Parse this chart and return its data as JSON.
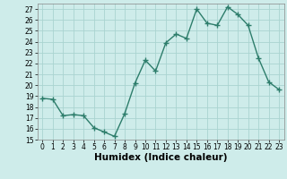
{
  "x": [
    0,
    1,
    2,
    3,
    4,
    5,
    6,
    7,
    8,
    9,
    10,
    11,
    12,
    13,
    14,
    15,
    16,
    17,
    18,
    19,
    20,
    21,
    22,
    23
  ],
  "y": [
    18.8,
    18.7,
    17.2,
    17.3,
    17.2,
    16.1,
    15.7,
    15.3,
    17.4,
    20.2,
    22.3,
    21.3,
    23.9,
    24.7,
    24.3,
    27.0,
    25.7,
    25.5,
    27.2,
    26.5,
    25.5,
    22.5,
    20.3,
    19.6
  ],
  "line_color": "#2d7d6b",
  "marker": "+",
  "marker_size": 4,
  "bg_color": "#ceecea",
  "grid_color": "#aad4d0",
  "xlabel": "Humidex (Indice chaleur)",
  "ylim": [
    15,
    27.5
  ],
  "xlim": [
    -0.5,
    23.5
  ],
  "yticks": [
    15,
    16,
    17,
    18,
    19,
    20,
    21,
    22,
    23,
    24,
    25,
    26,
    27
  ],
  "xticks": [
    0,
    1,
    2,
    3,
    4,
    5,
    6,
    7,
    8,
    9,
    10,
    11,
    12,
    13,
    14,
    15,
    16,
    17,
    18,
    19,
    20,
    21,
    22,
    23
  ],
  "tick_fontsize": 5.5,
  "label_fontsize": 7.5,
  "line_width": 1.0,
  "marker_edge_width": 1.0
}
